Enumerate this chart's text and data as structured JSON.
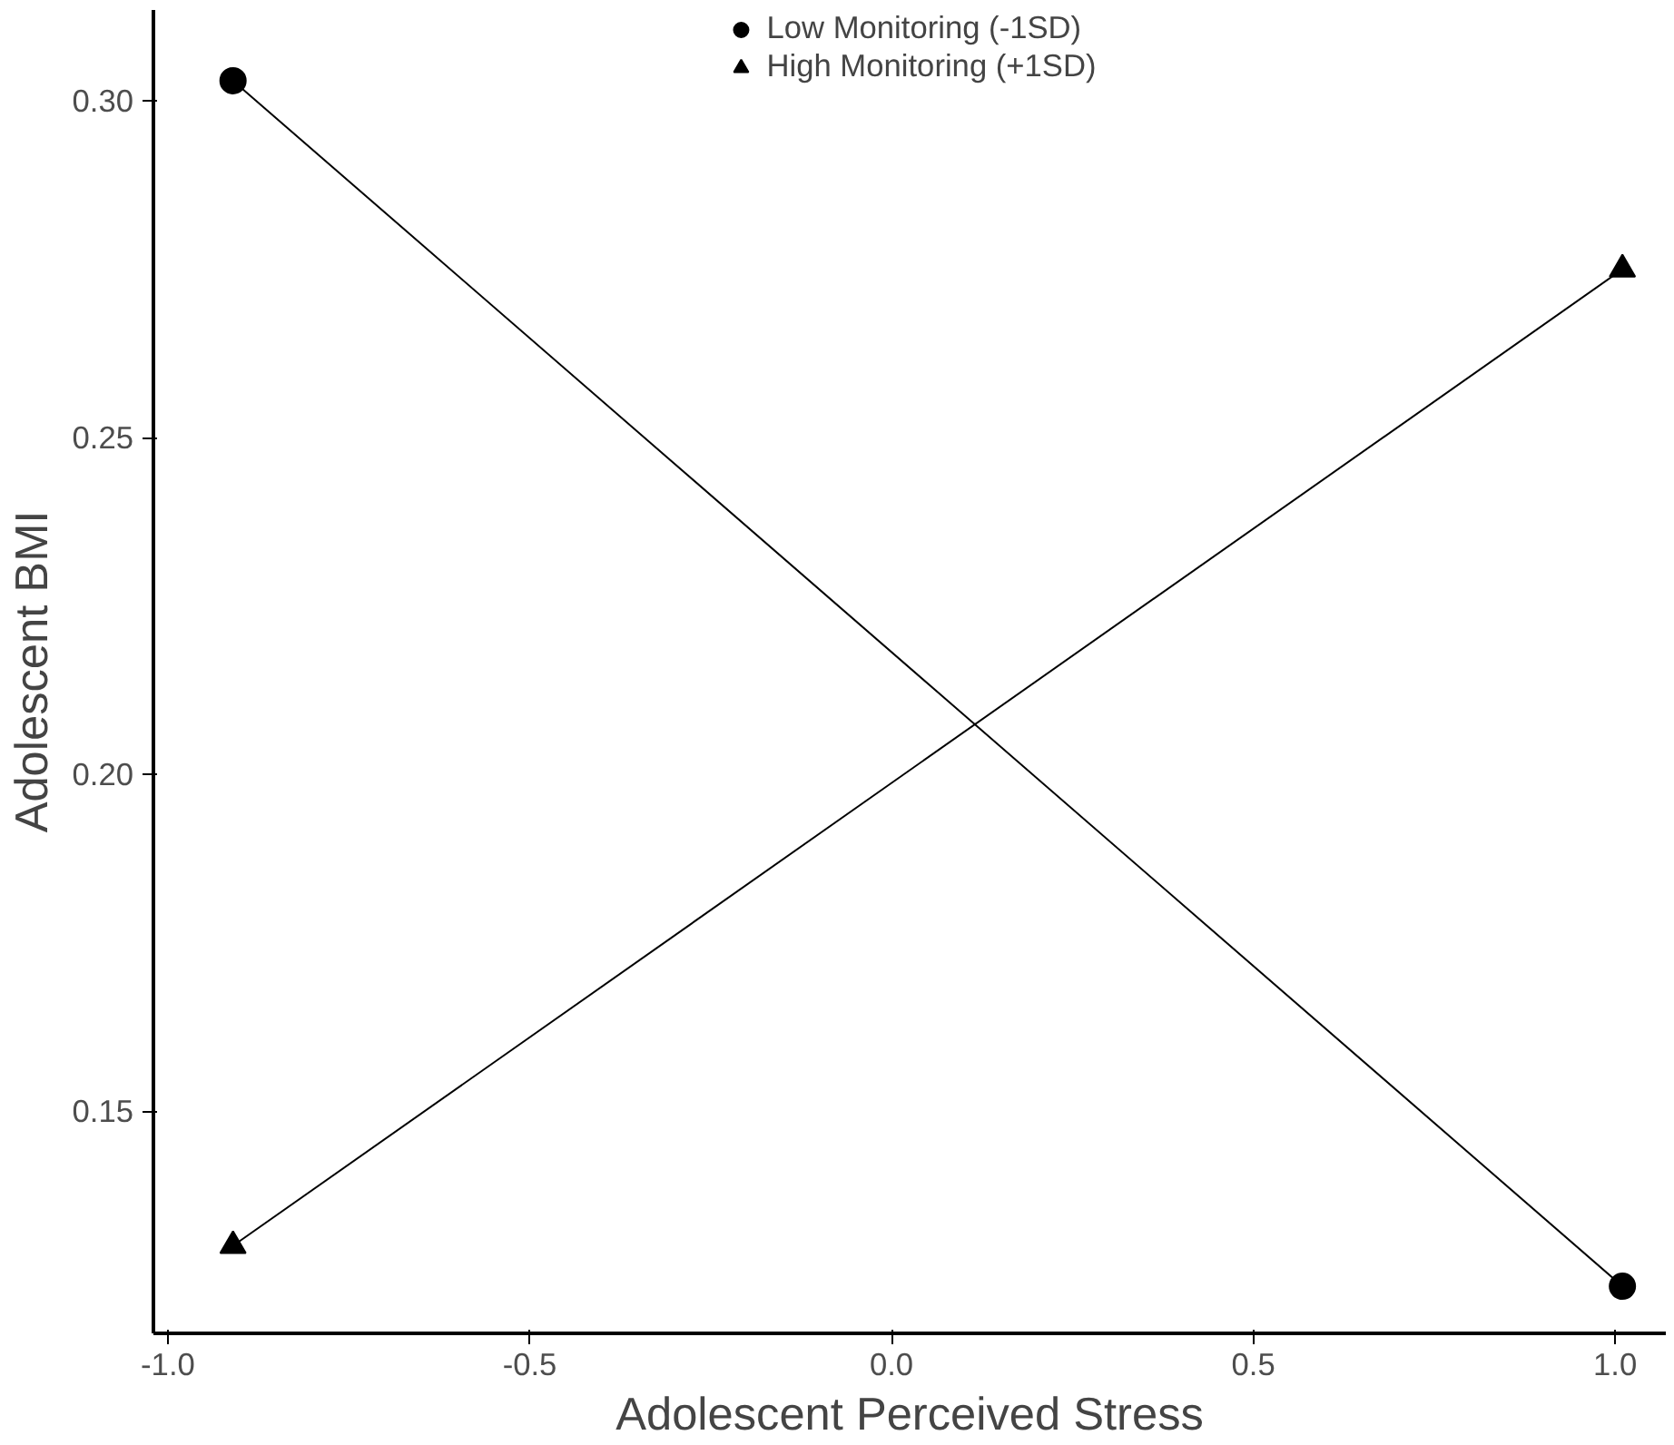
{
  "chart_data": {
    "type": "line",
    "xlabel": "Adolescent Perceived Stress",
    "ylabel": "Adolescent BMI",
    "x": [
      -0.91,
      1.01
    ],
    "series": [
      {
        "name": "Low Monitoring (-1SD)",
        "color": "#000000",
        "values": [
          0.303,
          0.124
        ],
        "marker": "circle"
      },
      {
        "name": "High Monitoring (+1SD)",
        "color": "#000000",
        "values": [
          0.13,
          0.275
        ],
        "marker": "triangle"
      }
    ],
    "xlim": [
      -1.02,
      1.07
    ],
    "ylim": [
      0.117,
      0.3135
    ],
    "xticks": [
      {
        "value": -1.0,
        "label": "-1.0"
      },
      {
        "value": -0.5,
        "label": "-0.5"
      },
      {
        "value": 0.0,
        "label": "0.0"
      },
      {
        "value": 0.5,
        "label": "0.5"
      },
      {
        "value": 1.0,
        "label": "1.0"
      }
    ],
    "yticks": [
      {
        "value": 0.15,
        "label": "0.15"
      },
      {
        "value": 0.2,
        "label": "0.20"
      },
      {
        "value": 0.25,
        "label": "0.25"
      },
      {
        "value": 0.3,
        "label": "0.30"
      }
    ],
    "grid": false,
    "legend": "top",
    "line_style": "solid"
  }
}
